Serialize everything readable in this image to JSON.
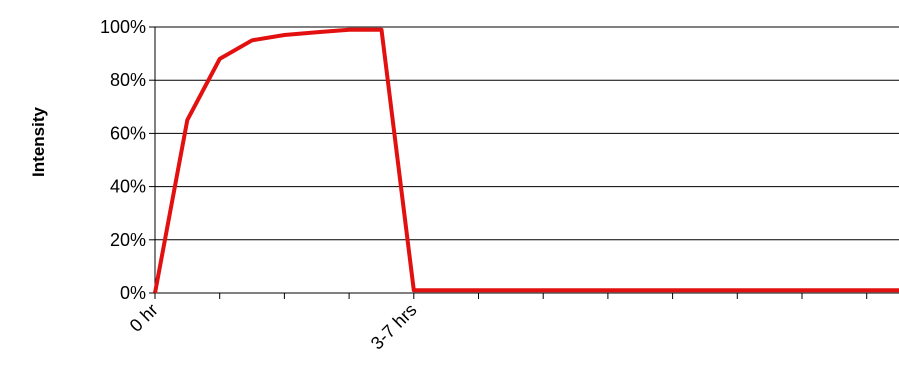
{
  "chart_data": {
    "type": "line",
    "title": "",
    "xlabel": "",
    "ylabel": "Intensity",
    "x_tick_labels": [
      {
        "index": 0,
        "label": "0 hr"
      },
      {
        "index": 4,
        "label": "3-7 hrs"
      }
    ],
    "y_ticks": [
      "0%",
      "20%",
      "40%",
      "60%",
      "80%",
      "100%"
    ],
    "ylim": [
      0,
      100
    ],
    "grid": "horizontal",
    "legend": "none",
    "series": [
      {
        "color": "#e31010",
        "points": [
          {
            "x": 0,
            "y": 0
          },
          {
            "x": 0.5,
            "y": 65
          },
          {
            "x": 1,
            "y": 88
          },
          {
            "x": 1.5,
            "y": 95
          },
          {
            "x": 2,
            "y": 97
          },
          {
            "x": 2.5,
            "y": 98
          },
          {
            "x": 3,
            "y": 99
          },
          {
            "x": 3.5,
            "y": 99
          },
          {
            "x": 4,
            "y": 1
          },
          {
            "x": 11.5,
            "y": 1
          }
        ]
      }
    ],
    "x_range": [
      0,
      11.5
    ],
    "x_tick_count": 12
  },
  "colors": {
    "gridline": "#000000",
    "series": "#e31010"
  }
}
